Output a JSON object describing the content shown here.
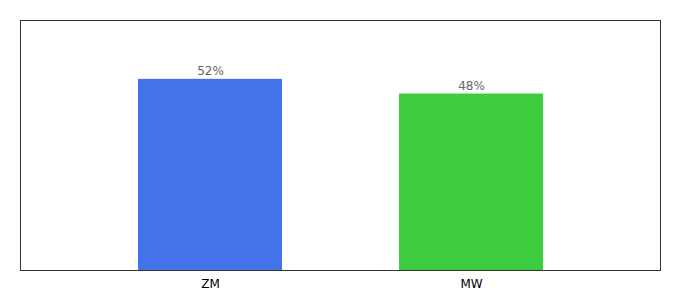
{
  "chart_data": {
    "type": "bar",
    "categories": [
      "ZM",
      "MW"
    ],
    "values": [
      52,
      48
    ],
    "value_labels": [
      "52%",
      "48%"
    ],
    "colors": [
      "#4472e8",
      "#3dcc3d"
    ],
    "ylim": [
      0,
      68
    ],
    "data_labels": true,
    "tick_labels": "x",
    "grid": false
  }
}
